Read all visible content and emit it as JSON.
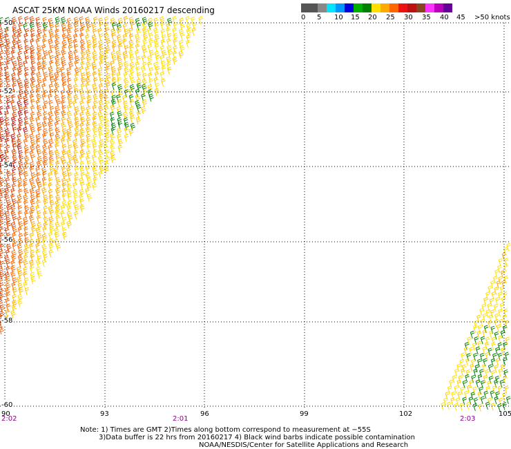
{
  "title": "ASCAT 25KM NOAA Winds 20160217 descending",
  "colorbar": {
    "segments": [
      "#555555",
      "#888888",
      "#00e5ff",
      "#0096ff",
      "#0000dd",
      "#00b000",
      "#008000",
      "#ffe000",
      "#ffaa00",
      "#ff6600",
      "#ee1111",
      "#bb1111",
      "#884422",
      "#ff33ff",
      "#bb00bb",
      "#660099"
    ],
    "labels": [
      "0",
      "5",
      "10",
      "15",
      "20",
      "25",
      "30",
      "35",
      "40",
      "45",
      ">50 knots"
    ]
  },
  "map": {
    "lon_labels": [
      "90",
      "93",
      "96",
      "99",
      "102",
      "105"
    ],
    "lat_labels": [
      "-50",
      "-52",
      "-54",
      "-56",
      "-58",
      "-60"
    ],
    "lon_range": [
      90,
      105
    ],
    "lat_range": [
      -50,
      -60
    ],
    "times": [
      "2:02",
      "2:01",
      "2:03"
    ]
  },
  "notes": {
    "line1": "Note: 1) Times are GMT 2)Times along bottom correspond to measurement at −55S",
    "line2": "3)Data buffer is 22 hrs from 20160217 4) Black wind barbs indicate possible contamination",
    "line3": "NOAA/NESDIS/Center for Satellite Applications and Research"
  }
}
